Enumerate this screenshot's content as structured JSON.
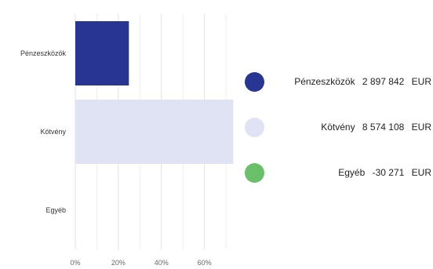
{
  "chart_data": {
    "type": "bar",
    "orientation": "horizontal",
    "categories": [
      "Pénzeszközök",
      "Kötvény",
      "Egyéb"
    ],
    "values": [
      24.9,
      73.4,
      -0.3
    ],
    "x_ticks": [
      "0%",
      "20%",
      "40%",
      "60%"
    ],
    "xlim": [
      0,
      74
    ],
    "grid": true,
    "colors": [
      "#283593",
      "#dfe3f3",
      "#6abf69"
    ],
    "legend": {
      "placement": "right",
      "items": [
        {
          "name": "Pénzeszközök",
          "amount": "2 897 842",
          "unit": "EUR",
          "color": "#283593"
        },
        {
          "name": "Kötvény",
          "amount": "8 574 108",
          "unit": "EUR",
          "color": "#dfe3f3"
        },
        {
          "name": "Egyéb",
          "amount": "-30 271",
          "unit": "EUR",
          "color": "#6abf69"
        }
      ]
    }
  }
}
